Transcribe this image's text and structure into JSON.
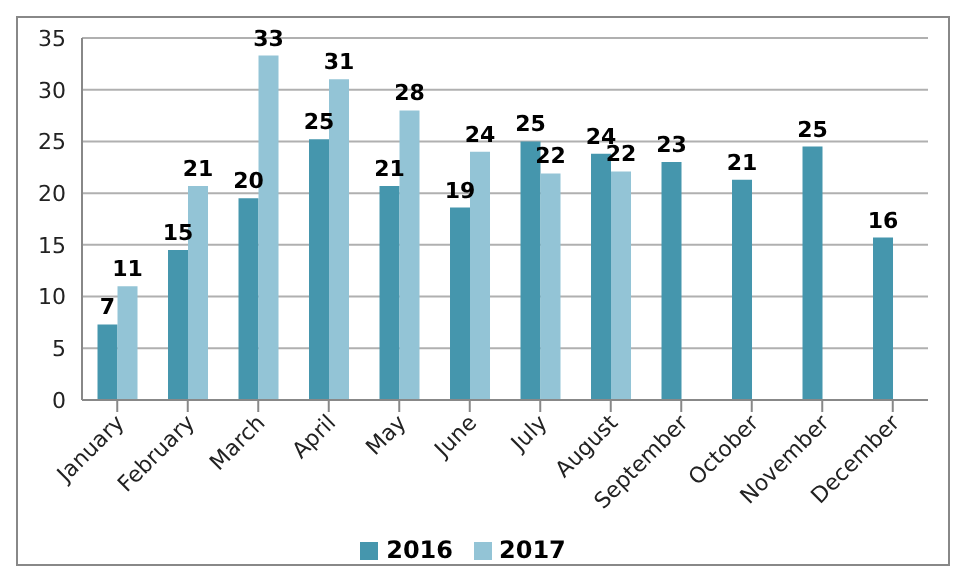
{
  "chart_data": {
    "type": "bar",
    "categories": [
      "January",
      "February",
      "March",
      "April",
      "May",
      "June",
      "July",
      "August",
      "September",
      "October",
      "November",
      "December"
    ],
    "series": [
      {
        "name": "2016",
        "color": "#4596ad",
        "values": [
          7.3,
          14.5,
          19.5,
          25.2,
          20.7,
          18.6,
          25,
          23.8,
          23,
          21.3,
          24.5,
          15.7
        ],
        "value_labels": [
          "7",
          "15",
          "20",
          "25",
          "21",
          "19",
          "25",
          "24",
          "23",
          "21",
          "25",
          "16"
        ]
      },
      {
        "name": "2017",
        "color": "#93c4d6",
        "values": [
          11,
          20.7,
          33.3,
          31,
          28,
          24,
          21.9,
          22.1,
          null,
          null,
          null,
          null
        ],
        "value_labels": [
          "11",
          "21",
          "33",
          "31",
          "28",
          "24",
          "22",
          "22",
          null,
          null,
          null,
          null
        ]
      }
    ],
    "ylim": [
      0,
      35
    ],
    "yticks": [
      0,
      5,
      10,
      15,
      20,
      25,
      30,
      35
    ],
    "grid": "y",
    "legend": "bottom"
  }
}
